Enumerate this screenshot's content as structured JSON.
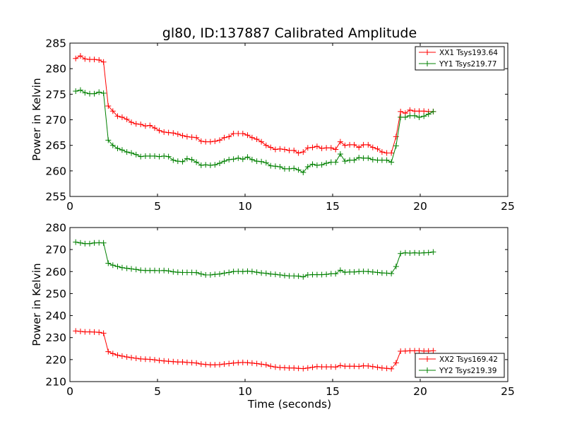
{
  "chart_data": [
    {
      "type": "line",
      "title": "gl80, ID:137887 Calibrated Amplitude",
      "ylabel": "Power in Kelvin",
      "xlabel": "",
      "xlim": [
        0,
        25
      ],
      "ylim": [
        255,
        285
      ],
      "xticks": [
        0,
        5,
        10,
        15,
        20,
        25
      ],
      "yticks": [
        255,
        260,
        265,
        270,
        275,
        280,
        285
      ],
      "xtick_labels": [
        "0",
        "5",
        "10",
        "15",
        "20",
        "25"
      ],
      "ytick_labels": [
        "255",
        "260",
        "265",
        "270",
        "275",
        "280",
        "285"
      ],
      "legend_position": "upper-right",
      "series": [
        {
          "name": "XX1 Tsys193.64",
          "color": "#ff0000",
          "x": [
            0.33,
            0.6,
            0.86,
            1.13,
            1.39,
            1.66,
            1.92,
            2.19,
            2.45,
            2.72,
            2.98,
            3.25,
            3.51,
            3.78,
            4.04,
            4.31,
            4.57,
            4.84,
            5.1,
            5.37,
            5.63,
            5.9,
            6.16,
            6.43,
            6.69,
            6.96,
            7.22,
            7.49,
            7.75,
            8.02,
            8.28,
            8.55,
            8.81,
            9.08,
            9.34,
            9.61,
            9.87,
            10.14,
            10.4,
            10.67,
            10.93,
            11.2,
            11.46,
            11.73,
            11.99,
            12.26,
            12.52,
            12.79,
            13.05,
            13.32,
            13.58,
            13.85,
            14.11,
            14.38,
            14.64,
            14.91,
            15.17,
            15.44,
            15.7,
            15.97,
            16.23,
            16.5,
            16.76,
            17.03,
            17.29,
            17.56,
            17.82,
            18.09,
            18.35,
            18.62,
            18.88,
            19.15,
            19.41,
            19.68,
            19.94,
            20.21,
            20.47,
            20.74
          ],
          "y": [
            282.0,
            282.5,
            281.9,
            281.8,
            281.8,
            281.7,
            281.3,
            272.7,
            271.7,
            270.7,
            270.5,
            270.1,
            269.5,
            269.2,
            269.1,
            268.8,
            268.9,
            268.4,
            267.9,
            267.6,
            267.5,
            267.4,
            267.2,
            266.9,
            266.7,
            266.6,
            266.5,
            265.8,
            265.7,
            265.7,
            265.8,
            266.0,
            266.5,
            266.7,
            267.3,
            267.3,
            267.3,
            267.0,
            266.5,
            266.2,
            265.7,
            265.0,
            264.6,
            264.2,
            264.3,
            264.2,
            264.0,
            264.0,
            263.5,
            263.7,
            264.5,
            264.6,
            264.8,
            264.4,
            264.5,
            264.5,
            264.2,
            265.7,
            265.0,
            265.1,
            265.1,
            264.6,
            265.1,
            265.1,
            264.6,
            264.3,
            263.7,
            263.5,
            263.5,
            266.7,
            271.6,
            271.3,
            271.9,
            271.7,
            271.7,
            271.7,
            271.6,
            271.6
          ]
        },
        {
          "name": "YY1 Tsys219.77",
          "color": "#008000",
          "x": [
            0.33,
            0.6,
            0.86,
            1.13,
            1.39,
            1.66,
            1.92,
            2.19,
            2.45,
            2.72,
            2.98,
            3.25,
            3.51,
            3.78,
            4.04,
            4.31,
            4.57,
            4.84,
            5.1,
            5.37,
            5.63,
            5.9,
            6.16,
            6.43,
            6.69,
            6.96,
            7.22,
            7.49,
            7.75,
            8.02,
            8.28,
            8.55,
            8.81,
            9.08,
            9.34,
            9.61,
            9.87,
            10.14,
            10.4,
            10.67,
            10.93,
            11.2,
            11.46,
            11.73,
            11.99,
            12.26,
            12.52,
            12.79,
            13.05,
            13.32,
            13.58,
            13.85,
            14.11,
            14.38,
            14.64,
            14.91,
            15.17,
            15.44,
            15.7,
            15.97,
            16.23,
            16.5,
            16.76,
            17.03,
            17.29,
            17.56,
            17.82,
            18.09,
            18.35,
            18.62,
            18.88,
            19.15,
            19.41,
            19.68,
            19.94,
            20.21,
            20.47,
            20.74
          ],
          "y": [
            275.6,
            275.8,
            275.3,
            275.1,
            275.1,
            275.4,
            275.2,
            266.0,
            265.0,
            264.4,
            264.1,
            263.7,
            263.5,
            263.2,
            262.8,
            262.9,
            262.9,
            262.9,
            262.8,
            262.9,
            262.8,
            262.1,
            261.9,
            261.8,
            262.4,
            262.2,
            261.7,
            261.1,
            261.2,
            261.1,
            261.2,
            261.5,
            261.9,
            262.2,
            262.3,
            262.5,
            262.3,
            262.7,
            262.2,
            261.9,
            261.8,
            261.6,
            261.0,
            260.9,
            260.8,
            260.4,
            260.4,
            260.5,
            260.2,
            259.7,
            260.8,
            261.3,
            261.1,
            261.2,
            261.5,
            261.7,
            261.7,
            263.3,
            261.9,
            262.1,
            262.1,
            262.6,
            262.5,
            262.5,
            262.2,
            262.1,
            262.1,
            262.1,
            261.7,
            264.9,
            270.5,
            270.5,
            270.8,
            270.8,
            270.5,
            270.7,
            271.1,
            271.6
          ]
        }
      ]
    },
    {
      "type": "line",
      "title": "",
      "ylabel": "Power in Kelvin",
      "xlabel": "Time (seconds)",
      "xlim": [
        0,
        25
      ],
      "ylim": [
        210,
        280
      ],
      "xticks": [
        0,
        5,
        10,
        15,
        20,
        25
      ],
      "yticks": [
        210,
        220,
        230,
        240,
        250,
        260,
        270,
        280
      ],
      "xtick_labels": [
        "0",
        "5",
        "10",
        "15",
        "20",
        "25"
      ],
      "ytick_labels": [
        "210",
        "220",
        "230",
        "240",
        "250",
        "260",
        "270",
        "280"
      ],
      "legend_position": "lower-right",
      "series": [
        {
          "name": "XX2 Tsys169.42",
          "color": "#ff0000",
          "x": [
            0.33,
            0.6,
            0.86,
            1.13,
            1.39,
            1.66,
            1.92,
            2.19,
            2.45,
            2.72,
            2.98,
            3.25,
            3.51,
            3.78,
            4.04,
            4.31,
            4.57,
            4.84,
            5.1,
            5.37,
            5.63,
            5.9,
            6.16,
            6.43,
            6.69,
            6.96,
            7.22,
            7.49,
            7.75,
            8.02,
            8.28,
            8.55,
            8.81,
            9.08,
            9.34,
            9.61,
            9.87,
            10.14,
            10.4,
            10.67,
            10.93,
            11.2,
            11.46,
            11.73,
            11.99,
            12.26,
            12.52,
            12.79,
            13.05,
            13.32,
            13.58,
            13.85,
            14.11,
            14.38,
            14.64,
            14.91,
            15.17,
            15.44,
            15.7,
            15.97,
            16.23,
            16.5,
            16.76,
            17.03,
            17.29,
            17.56,
            17.82,
            18.09,
            18.35,
            18.62,
            18.88,
            19.15,
            19.41,
            19.68,
            19.94,
            20.21,
            20.47,
            20.74
          ],
          "y": [
            233.0,
            232.8,
            232.6,
            232.6,
            232.5,
            232.4,
            232.0,
            223.6,
            222.7,
            222.0,
            221.6,
            221.2,
            220.9,
            220.6,
            220.3,
            220.2,
            220.1,
            219.9,
            219.6,
            219.4,
            219.2,
            219.1,
            218.9,
            218.9,
            218.7,
            218.6,
            218.4,
            218.0,
            217.8,
            217.6,
            217.6,
            217.7,
            218.0,
            218.2,
            218.4,
            218.6,
            218.7,
            218.6,
            218.4,
            218.2,
            217.9,
            217.6,
            217.0,
            216.6,
            216.4,
            216.3,
            216.2,
            216.2,
            216.0,
            215.9,
            216.2,
            216.5,
            216.8,
            216.7,
            216.7,
            216.7,
            216.6,
            217.3,
            217.0,
            217.0,
            217.0,
            216.9,
            217.2,
            217.1,
            216.8,
            216.5,
            216.2,
            216.0,
            215.8,
            218.5,
            223.8,
            223.9,
            224.0,
            224.0,
            224.0,
            223.9,
            223.9,
            224.0
          ]
        },
        {
          "name": "YY2 Tsys219.39",
          "color": "#008000",
          "x": [
            0.33,
            0.6,
            0.86,
            1.13,
            1.39,
            1.66,
            1.92,
            2.19,
            2.45,
            2.72,
            2.98,
            3.25,
            3.51,
            3.78,
            4.04,
            4.31,
            4.57,
            4.84,
            5.1,
            5.37,
            5.63,
            5.9,
            6.16,
            6.43,
            6.69,
            6.96,
            7.22,
            7.49,
            7.75,
            8.02,
            8.28,
            8.55,
            8.81,
            9.08,
            9.34,
            9.61,
            9.87,
            10.14,
            10.4,
            10.67,
            10.93,
            11.2,
            11.46,
            11.73,
            11.99,
            12.26,
            12.52,
            12.79,
            13.05,
            13.32,
            13.58,
            13.85,
            14.11,
            14.38,
            14.64,
            14.91,
            15.17,
            15.44,
            15.7,
            15.97,
            16.23,
            16.5,
            16.76,
            17.03,
            17.29,
            17.56,
            17.82,
            18.09,
            18.35,
            18.62,
            18.88,
            19.15,
            19.41,
            19.68,
            19.94,
            20.21,
            20.47,
            20.74
          ],
          "y": [
            273.4,
            273.0,
            272.7,
            272.7,
            273.0,
            273.1,
            273.0,
            263.8,
            262.9,
            262.3,
            261.8,
            261.5,
            261.2,
            261.0,
            260.6,
            260.5,
            260.5,
            260.5,
            260.4,
            260.5,
            260.3,
            259.9,
            259.7,
            259.6,
            259.6,
            259.6,
            259.5,
            258.9,
            258.5,
            258.5,
            258.7,
            258.9,
            259.3,
            259.6,
            260.0,
            260.1,
            260.0,
            260.2,
            260.0,
            259.7,
            259.4,
            259.2,
            258.9,
            258.7,
            258.5,
            258.2,
            258.0,
            258.0,
            257.9,
            257.6,
            258.5,
            258.6,
            258.6,
            258.6,
            258.7,
            259.0,
            259.0,
            260.6,
            259.7,
            259.8,
            259.8,
            260.0,
            260.1,
            260.0,
            259.8,
            259.6,
            259.4,
            259.3,
            259.1,
            262.3,
            268.2,
            268.5,
            268.4,
            268.5,
            268.4,
            268.5,
            268.6,
            268.9
          ]
        }
      ]
    }
  ]
}
